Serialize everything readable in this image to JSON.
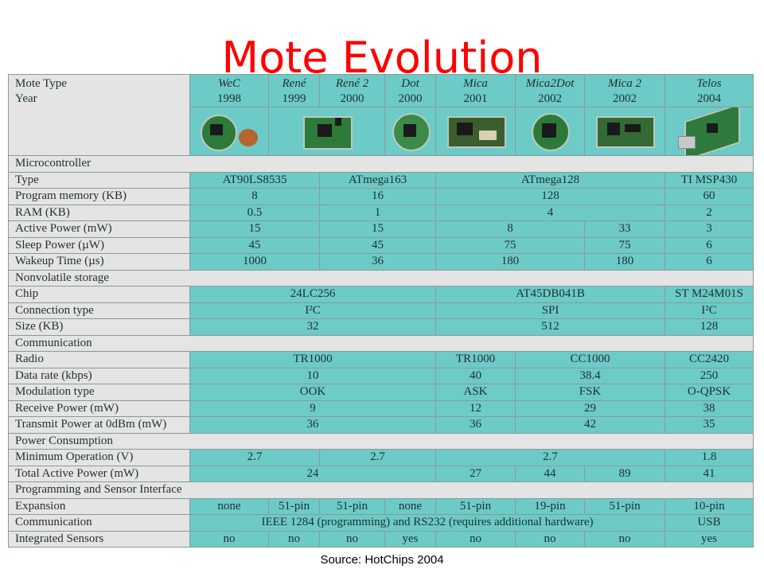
{
  "title": "Mote Evolution",
  "source": "Source: HotChips 2004",
  "header": {
    "type_label": "Mote Type",
    "year_label": "Year",
    "motes": [
      {
        "name": "WeC",
        "year": "1998",
        "icon": "wec-mote-photo-icon"
      },
      {
        "name": "René",
        "year": "1999",
        "icon": "rene-mote-photo-icon"
      },
      {
        "name": "René 2",
        "year": "2000",
        "icon": "rene2-mote-photo-icon"
      },
      {
        "name": "Dot",
        "year": "2000",
        "icon": "dot-mote-photo-icon"
      },
      {
        "name": "Mica",
        "year": "2001",
        "icon": "mica-mote-photo-icon"
      },
      {
        "name": "Mica2Dot",
        "year": "2002",
        "icon": "mica2dot-mote-photo-icon"
      },
      {
        "name": "Mica 2",
        "year": "2002",
        "icon": "mica2-mote-photo-icon"
      },
      {
        "name": "Telos",
        "year": "2004",
        "icon": "telos-mote-photo-icon"
      }
    ]
  },
  "sections": {
    "microcontroller": "Microcontroller",
    "storage": "Nonvolatile storage",
    "communication": "Communication",
    "power": "Power Consumption",
    "programming": "Programming and Sensor Interface"
  },
  "rows": {
    "type": {
      "label": "Type",
      "v": [
        "AT90LS8535",
        "ATmega163",
        "ATmega128",
        "TI MSP430"
      ]
    },
    "progmem": {
      "label": "Program memory (KB)",
      "v": [
        "8",
        "16",
        "128",
        "60"
      ]
    },
    "ram": {
      "label": "RAM (KB)",
      "v": [
        "0.5",
        "1",
        "4",
        "2"
      ]
    },
    "active": {
      "label": "Active Power (mW)",
      "v": [
        "15",
        "15",
        "8",
        "33",
        "3"
      ]
    },
    "sleep": {
      "label": "Sleep Power (µW)",
      "v": [
        "45",
        "45",
        "75",
        "75",
        "6"
      ]
    },
    "wakeup": {
      "label": "Wakeup Time (µs)",
      "v": [
        "1000",
        "36",
        "180",
        "180",
        "6"
      ]
    },
    "chip": {
      "label": "Chip",
      "v": [
        "24LC256",
        "AT45DB041B",
        "ST M24M01S"
      ]
    },
    "conn": {
      "label": "Connection type",
      "v": [
        "I²C",
        "SPI",
        "I²C"
      ]
    },
    "size": {
      "label": "Size (KB)",
      "v": [
        "32",
        "512",
        "128"
      ]
    },
    "radio": {
      "label": "Radio",
      "v": [
        "TR1000",
        "TR1000",
        "CC1000",
        "CC2420"
      ]
    },
    "datarate": {
      "label": "Data rate (kbps)",
      "v": [
        "10",
        "40",
        "38.4",
        "250"
      ]
    },
    "modulation": {
      "label": "Modulation type",
      "v": [
        "OOK",
        "ASK",
        "FSK",
        "O-QPSK"
      ]
    },
    "receive": {
      "label": "Receive Power (mW)",
      "v": [
        "9",
        "12",
        "29",
        "38"
      ]
    },
    "transmit": {
      "label": "Transmit Power at 0dBm (mW)",
      "v": [
        "36",
        "36",
        "42",
        "35"
      ]
    },
    "minop": {
      "label": "Minimum Operation (V)",
      "v": [
        "2.7",
        "2.7",
        "2.7",
        "1.8"
      ]
    },
    "totalactive": {
      "label": "Total Active Power (mW)",
      "v": [
        "24",
        "27",
        "44",
        "89",
        "41"
      ]
    },
    "expansion": {
      "label": "Expansion",
      "v": [
        "none",
        "51-pin",
        "51-pin",
        "none",
        "51-pin",
        "19-pin",
        "51-pin",
        "10-pin"
      ]
    },
    "comm": {
      "label": "Communication",
      "v": [
        "IEEE 1284 (programming) and RS232 (requires additional hardware)",
        "USB"
      ]
    },
    "sensors": {
      "label": "Integrated Sensors",
      "v": [
        "no",
        "no",
        "no",
        "yes",
        "no",
        "no",
        "no",
        "yes"
      ]
    }
  },
  "colors": {
    "title": "#ff0000",
    "cell": "#6ccbc6",
    "label_cell": "#e4e4e4"
  }
}
